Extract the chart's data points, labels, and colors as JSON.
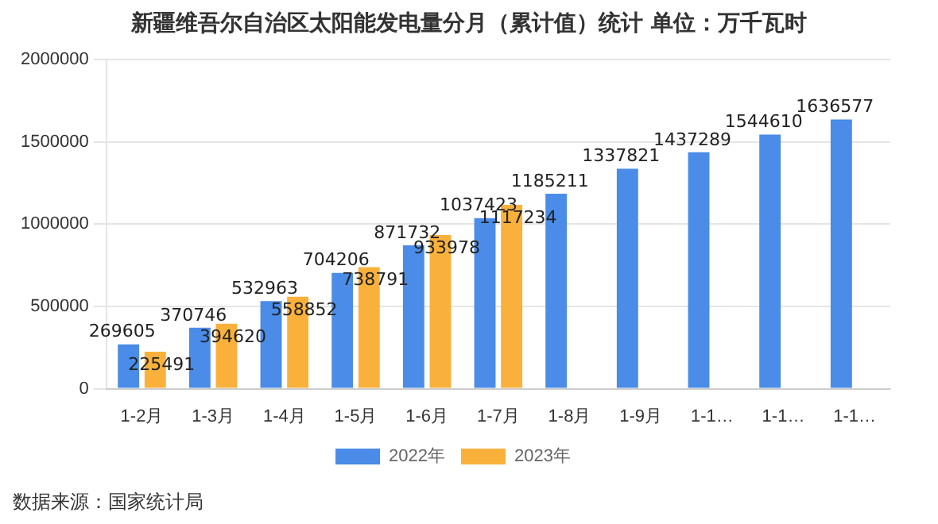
{
  "chart_data": {
    "type": "bar",
    "title": "新疆维吾尔自治区太阳能发电量分月（累计值）统计  单位：万千瓦时",
    "categories": [
      "1-2月",
      "1-3月",
      "1-4月",
      "1-5月",
      "1-6月",
      "1-7月",
      "1-8月",
      "1-9月",
      "1-1…",
      "1-1…",
      "1-1…"
    ],
    "series": [
      {
        "name": "2022年",
        "color": "#4a8ce8",
        "values": [
          269605,
          370746,
          532963,
          704206,
          871732,
          1037423,
          1185211,
          1337821,
          1437289,
          1544610,
          1636577
        ]
      },
      {
        "name": "2023年",
        "color": "#f9b13c",
        "values": [
          225491,
          394620,
          558852,
          738791,
          933978,
          1117234,
          null,
          null,
          null,
          null,
          null
        ]
      }
    ],
    "ylim": [
      0,
      2000000
    ],
    "yticks": [
      0,
      500000,
      1000000,
      1500000,
      2000000
    ],
    "grid": "y",
    "legend": "bottom",
    "data_labels": true,
    "annotations": [
      "数据来源：国家统计局"
    ]
  }
}
